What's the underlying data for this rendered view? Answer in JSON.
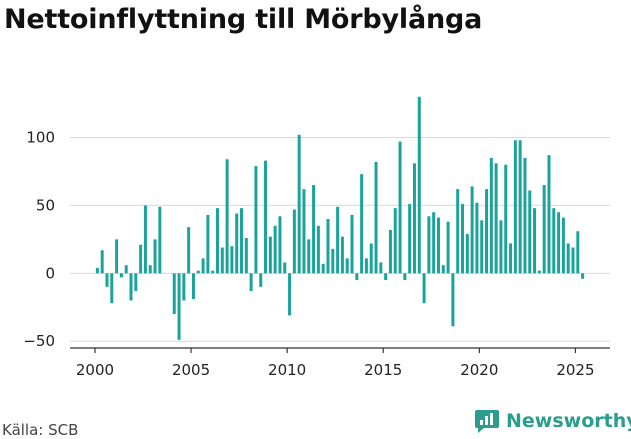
{
  "title": "Nettoinflyttning till Mörbylånga",
  "source": "Källa: SCB",
  "brand": {
    "name": "Newsworthy",
    "icon": "newsworthy-logo-icon",
    "color": "#2a9d8f"
  },
  "colors": {
    "bar": "#1aa39a",
    "grid": "#d9d9d9",
    "axis": "#333333"
  },
  "chart_data": {
    "type": "bar",
    "title": "Nettoinflyttning till Mörbylånga",
    "xlabel": "",
    "ylabel": "",
    "xlim": [
      1998.7,
      2026.8
    ],
    "ylim": [
      -55,
      135
    ],
    "x_ticks": [
      2000,
      2005,
      2010,
      2015,
      2020,
      2025
    ],
    "y_ticks": [
      -50,
      0,
      50,
      100
    ],
    "grid": true,
    "series": [
      {
        "x": [
          2000.125,
          2000.375,
          2000.625,
          2000.875,
          2001.125,
          2001.375,
          2001.625,
          2001.875,
          2002.125,
          2002.375,
          2002.625,
          2002.875,
          2003.125,
          2003.375,
          2003.625,
          2003.875,
          2004.125,
          2004.375,
          2004.625,
          2004.875,
          2005.125,
          2005.375,
          2005.625,
          2005.875,
          2006.125,
          2006.375,
          2006.625,
          2006.875,
          2007.125,
          2007.375,
          2007.625,
          2007.875,
          2008.125,
          2008.375,
          2008.625,
          2008.875,
          2009.125,
          2009.375,
          2009.625,
          2009.875,
          2010.125,
          2010.375,
          2010.625,
          2010.875,
          2011.125,
          2011.375,
          2011.625,
          2011.875,
          2012.125,
          2012.375,
          2012.625,
          2012.875,
          2013.125,
          2013.375,
          2013.625,
          2013.875,
          2014.125,
          2014.375,
          2014.625,
          2014.875,
          2015.125,
          2015.375,
          2015.625,
          2015.875,
          2016.125,
          2016.375,
          2016.625,
          2016.875,
          2017.125,
          2017.375,
          2017.625,
          2017.875,
          2018.125,
          2018.375,
          2018.625,
          2018.875,
          2019.125,
          2019.375,
          2019.625,
          2019.875,
          2020.125,
          2020.375,
          2020.625,
          2020.875,
          2021.125,
          2021.375,
          2021.625,
          2021.875,
          2022.125,
          2022.375,
          2022.625,
          2022.875,
          2023.125,
          2023.375,
          2023.625,
          2023.875,
          2024.125,
          2024.375,
          2024.625,
          2024.875,
          2025.125,
          2025.375
        ],
        "values": [
          4,
          17,
          -10,
          -22,
          25,
          -3,
          6,
          -20,
          -13,
          21,
          50,
          6,
          25,
          49,
          0,
          0,
          -30,
          -49,
          -20,
          34,
          -19,
          2,
          11,
          43,
          2,
          48,
          19,
          84,
          20,
          44,
          48,
          26,
          -13,
          79,
          -10,
          83,
          27,
          35,
          42,
          8,
          -31,
          47,
          102,
          62,
          25,
          65,
          35,
          7,
          40,
          18,
          49,
          27,
          11,
          43,
          -5,
          73,
          11,
          22,
          82,
          8,
          -5,
          32,
          48,
          97,
          -5,
          51,
          81,
          130,
          -22,
          42,
          45,
          41,
          6,
          38,
          -39,
          62,
          51,
          29,
          64,
          52,
          39,
          62,
          85,
          81,
          39,
          80,
          22,
          98,
          98,
          85,
          61,
          48,
          2,
          65,
          87,
          48,
          45,
          41,
          22,
          19,
          31,
          -4
        ]
      }
    ]
  }
}
